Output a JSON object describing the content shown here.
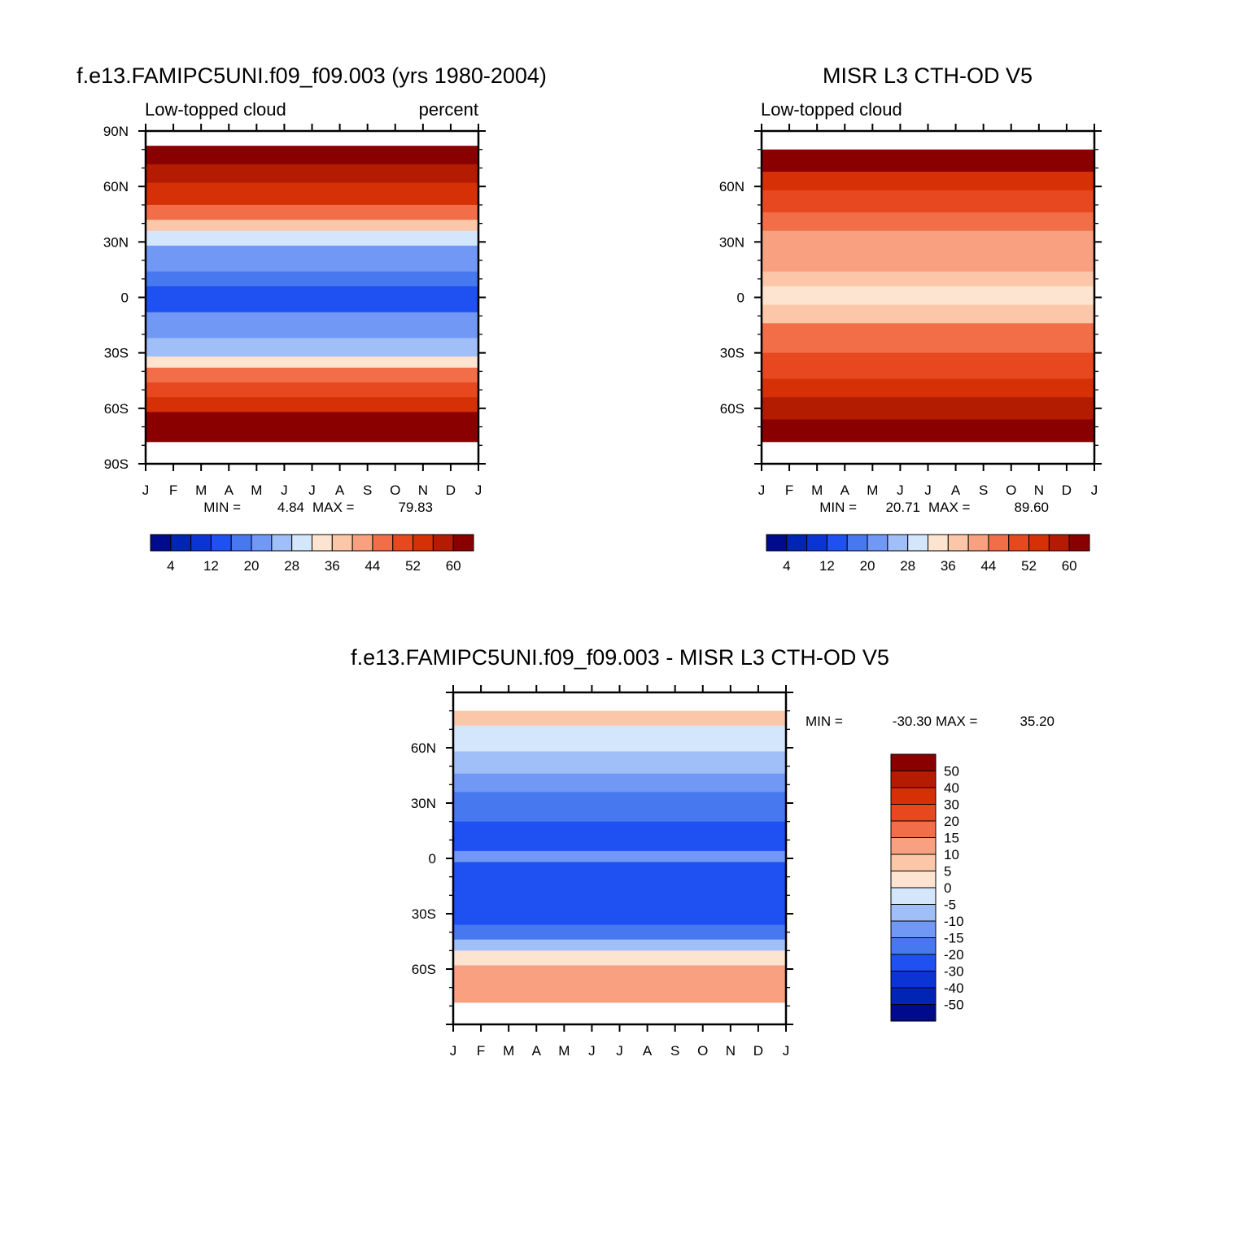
{
  "chart_data": [
    {
      "type": "heatmap",
      "title": "f.e13.FAMIPC5UNI.f09_f09.003 (yrs 1980-2004)",
      "left_string": "Low-topped cloud",
      "right_string": "percent",
      "x_tick_labels": [
        "J",
        "F",
        "M",
        "A",
        "M",
        "J",
        "J",
        "A",
        "S",
        "O",
        "N",
        "D",
        "J"
      ],
      "y_tick_labels": [
        "90N",
        "60N",
        "30N",
        "0",
        "30S",
        "60S",
        "90S"
      ],
      "y_tick_values": [
        90,
        60,
        30,
        0,
        -30,
        -60,
        -90
      ],
      "ylim": [
        -90,
        90
      ],
      "stats": {
        "min_label": "MIN =",
        "min": "4.84",
        "max_label": "MAX =",
        "max": "79.83"
      },
      "colorbar": {
        "orientation": "horizontal",
        "labels": [
          "4",
          "12",
          "20",
          "28",
          "36",
          "44",
          "52",
          "60"
        ],
        "levels": [
          0,
          4,
          8,
          12,
          16,
          20,
          24,
          28,
          32,
          36,
          40,
          44,
          48,
          52,
          56,
          60
        ],
        "colors": [
          "#000a8c",
          "#0024b4",
          "#0a34d4",
          "#1e50f2",
          "#4878f0",
          "#7098f4",
          "#a0bef8",
          "#d4e6fc",
          "#fde4d0",
          "#fcc6a8",
          "#f8a080",
          "#f26e48",
          "#e84820",
          "#d63006",
          "#b41c02",
          "#8a0000"
        ]
      },
      "bands": [
        {
          "lat_max": 90,
          "lat_min": 82,
          "value": null
        },
        {
          "lat_max": 82,
          "lat_min": 72,
          "value": 65
        },
        {
          "lat_max": 72,
          "lat_min": 62,
          "value": 53
        },
        {
          "lat_max": 62,
          "lat_min": 50,
          "value": 50
        },
        {
          "lat_max": 50,
          "lat_min": 42,
          "value": 42
        },
        {
          "lat_max": 42,
          "lat_min": 36,
          "value": 34
        },
        {
          "lat_max": 36,
          "lat_min": 28,
          "value": 24
        },
        {
          "lat_max": 28,
          "lat_min": 14,
          "value": 19
        },
        {
          "lat_max": 14,
          "lat_min": 6,
          "value": 14
        },
        {
          "lat_max": 6,
          "lat_min": -8,
          "value": 11
        },
        {
          "lat_max": -8,
          "lat_min": -22,
          "value": 18
        },
        {
          "lat_max": -22,
          "lat_min": -32,
          "value": 22
        },
        {
          "lat_max": -32,
          "lat_min": -38,
          "value": 30
        },
        {
          "lat_max": -38,
          "lat_min": -46,
          "value": 41
        },
        {
          "lat_max": -46,
          "lat_min": -54,
          "value": 46
        },
        {
          "lat_max": -54,
          "lat_min": -62,
          "value": 51
        },
        {
          "lat_max": -62,
          "lat_min": -70,
          "value": 58
        },
        {
          "lat_max": -70,
          "lat_min": -78,
          "value": 62
        },
        {
          "lat_max": -78,
          "lat_min": -90,
          "value": null
        }
      ]
    },
    {
      "type": "heatmap",
      "title": "MISR L3 CTH-OD V5",
      "left_string": "Low-topped cloud",
      "right_string": "",
      "x_tick_labels": [
        "J",
        "F",
        "M",
        "A",
        "M",
        "J",
        "J",
        "A",
        "S",
        "O",
        "N",
        "D",
        "J"
      ],
      "y_tick_labels": [
        "60N",
        "30N",
        "0",
        "30S",
        "60S"
      ],
      "y_tick_values": [
        60,
        30,
        0,
        -30,
        -60
      ],
      "ylim": [
        -90,
        90
      ],
      "stats": {
        "min_label": "MIN =",
        "min": "20.71",
        "max_label": "MAX =",
        "max": "89.60"
      },
      "colorbar": {
        "orientation": "horizontal",
        "labels": [
          "4",
          "12",
          "20",
          "28",
          "36",
          "44",
          "52",
          "60"
        ],
        "levels": [
          0,
          4,
          8,
          12,
          16,
          20,
          24,
          28,
          32,
          36,
          40,
          44,
          48,
          52,
          56,
          60
        ],
        "colors": [
          "#000a8c",
          "#0024b4",
          "#0a34d4",
          "#1e50f2",
          "#4878f0",
          "#7098f4",
          "#a0bef8",
          "#d4e6fc",
          "#fde4d0",
          "#fcc6a8",
          "#f8a080",
          "#f26e48",
          "#e84820",
          "#d63006",
          "#b41c02",
          "#8a0000"
        ]
      },
      "bands": [
        {
          "lat_max": 90,
          "lat_min": 80,
          "value": null
        },
        {
          "lat_max": 80,
          "lat_min": 68,
          "value": 58
        },
        {
          "lat_max": 68,
          "lat_min": 58,
          "value": 49
        },
        {
          "lat_max": 58,
          "lat_min": 46,
          "value": 46
        },
        {
          "lat_max": 46,
          "lat_min": 36,
          "value": 40
        },
        {
          "lat_max": 36,
          "lat_min": 14,
          "value": 37
        },
        {
          "lat_max": 14,
          "lat_min": 6,
          "value": 33
        },
        {
          "lat_max": 6,
          "lat_min": -4,
          "value": 29
        },
        {
          "lat_max": -4,
          "lat_min": -14,
          "value": 33
        },
        {
          "lat_max": -14,
          "lat_min": -30,
          "value": 41
        },
        {
          "lat_max": -30,
          "lat_min": -44,
          "value": 45
        },
        {
          "lat_max": -44,
          "lat_min": -54,
          "value": 50
        },
        {
          "lat_max": -54,
          "lat_min": -66,
          "value": 54
        },
        {
          "lat_max": -66,
          "lat_min": -78,
          "value": 61
        },
        {
          "lat_max": -78,
          "lat_min": -90,
          "value": null
        }
      ]
    },
    {
      "type": "heatmap",
      "title": "f.e13.FAMIPC5UNI.f09_f09.003 - MISR L3 CTH-OD V5",
      "x_tick_labels": [
        "J",
        "F",
        "M",
        "A",
        "M",
        "J",
        "J",
        "A",
        "S",
        "O",
        "N",
        "D",
        "J"
      ],
      "y_tick_labels": [
        "60N",
        "30N",
        "0",
        "30S",
        "60S"
      ],
      "y_tick_values": [
        60,
        30,
        0,
        -30,
        -60
      ],
      "ylim": [
        -90,
        90
      ],
      "stats": {
        "min_label": "MIN =",
        "min": "-30.30",
        "max_label": "MAX =",
        "max": "35.20"
      },
      "colorbar": {
        "orientation": "vertical",
        "labels": [
          "50",
          "40",
          "30",
          "20",
          "15",
          "10",
          "5",
          "0",
          "-5",
          "-10",
          "-15",
          "-20",
          "-30",
          "-40",
          "-50"
        ],
        "levels": [
          -50,
          -40,
          -30,
          -20,
          -15,
          -10,
          -5,
          0,
          5,
          10,
          15,
          20,
          30,
          40,
          50
        ],
        "colors": [
          "#000a8c",
          "#0024b4",
          "#0a34d4",
          "#1e50f2",
          "#4878f0",
          "#7098f4",
          "#a0bef8",
          "#d4e6fc",
          "#fde4d0",
          "#fcc6a8",
          "#f8a080",
          "#f26e48",
          "#e84820",
          "#d63006",
          "#b41c02",
          "#8a0000"
        ]
      },
      "bands": [
        {
          "lat_max": 90,
          "lat_min": 80,
          "value": null
        },
        {
          "lat_max": 80,
          "lat_min": 72,
          "value": 7
        },
        {
          "lat_max": 72,
          "lat_min": 58,
          "value": -3
        },
        {
          "lat_max": 58,
          "lat_min": 46,
          "value": -7
        },
        {
          "lat_max": 46,
          "lat_min": 36,
          "value": -12
        },
        {
          "lat_max": 36,
          "lat_min": 20,
          "value": -17
        },
        {
          "lat_max": 20,
          "lat_min": 4,
          "value": -22
        },
        {
          "lat_max": 4,
          "lat_min": -2,
          "value": -15
        },
        {
          "lat_max": -2,
          "lat_min": -36,
          "value": -25
        },
        {
          "lat_max": -36,
          "lat_min": -44,
          "value": -17
        },
        {
          "lat_max": -44,
          "lat_min": -50,
          "value": -8
        },
        {
          "lat_max": -50,
          "lat_min": -58,
          "value": 3
        },
        {
          "lat_max": -58,
          "lat_min": -78,
          "value": 12
        },
        {
          "lat_max": -78,
          "lat_min": -90,
          "value": null
        }
      ]
    }
  ]
}
